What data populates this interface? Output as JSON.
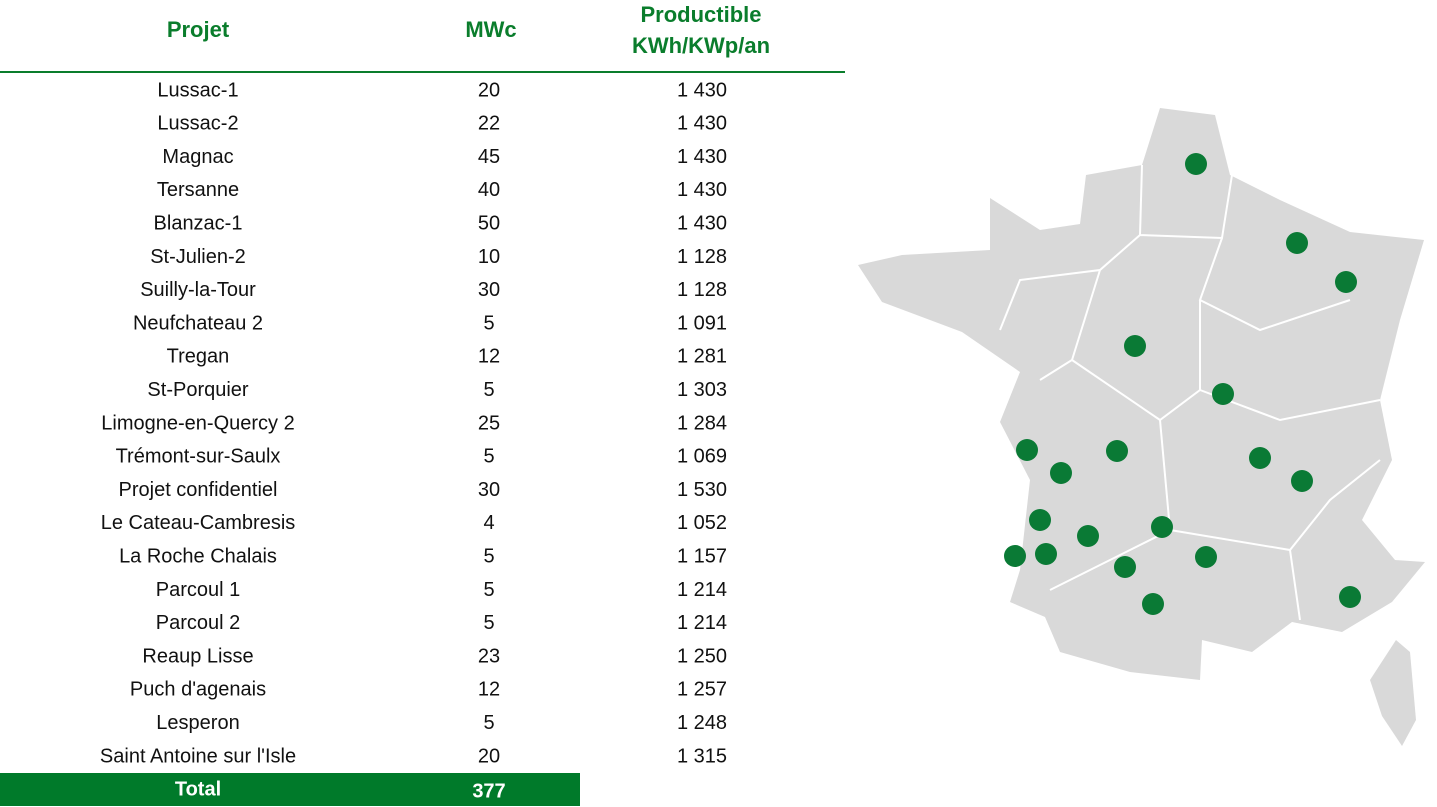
{
  "table": {
    "headers": [
      "Projet",
      "MWc",
      "Productible",
      "KWh/KWp/an"
    ],
    "rows": [
      [
        "Lussac-1",
        20,
        "1 430"
      ],
      [
        "Lussac-2",
        22,
        "1 430"
      ],
      [
        "Magnac",
        45,
        "1 430"
      ],
      [
        "Tersanne",
        40,
        "1 430"
      ],
      [
        "Blanzac-1",
        50,
        "1 430"
      ],
      [
        "St-Julien-2",
        10,
        "1 128"
      ],
      [
        "Suilly-la-Tour",
        30,
        "1 128"
      ],
      [
        "Neufchateau 2",
        5,
        "1 091"
      ],
      [
        "Tregan",
        12,
        "1 281"
      ],
      [
        "St-Porquier",
        5,
        "1 303"
      ],
      [
        "Limogne-en-Quercy 2",
        25,
        "1 284"
      ],
      [
        "Trémont-sur-Saulx",
        5,
        "1 069"
      ],
      [
        "Projet confidentiel",
        30,
        "1 530"
      ],
      [
        "Le Cateau-Cambresis",
        4,
        "1 052"
      ],
      [
        "La Roche Chalais",
        5,
        "1 157"
      ],
      [
        "Parcoul 1",
        5,
        "1 214"
      ],
      [
        "Parcoul 2",
        5,
        "1 214"
      ],
      [
        "Reaup Lisse",
        23,
        "1 250"
      ],
      [
        "Puch d'agenais",
        12,
        "1 257"
      ],
      [
        "Lesperon",
        5,
        "1 248"
      ],
      [
        "Saint Antoine sur l'Isle",
        20,
        "1 315"
      ]
    ],
    "total": {
      "label": "Total",
      "value": 377
    }
  }
}
